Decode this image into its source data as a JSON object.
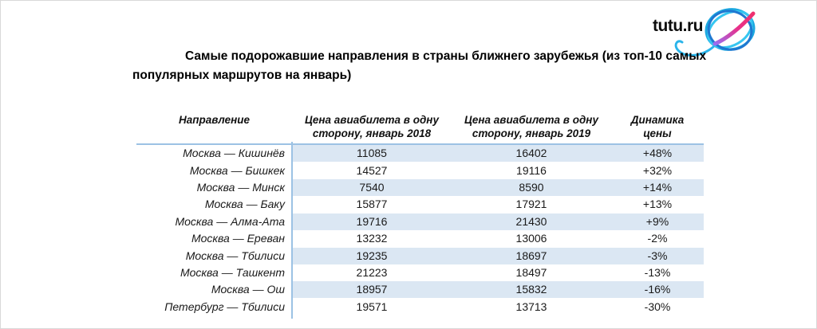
{
  "logo": {
    "text": "tutu.ru",
    "icon": "tutu-globe-icon"
  },
  "title": "Самые подорожавшие направления в страны ближнего зарубежья (из топ-10 самых популярных маршрутов на январь)",
  "chart_data": {
    "type": "table",
    "title": "Самые подорожавшие направления в страны ближнего зарубежья (из топ-10 самых популярных маршрутов на январь)",
    "columns": [
      "Направление",
      "Цена авиабилета в одну сторону, январь 2018",
      "Цена авиабилета в одну сторону, январь 2019",
      "Динамика цены"
    ],
    "rows": [
      [
        "Москва — Кишинёв",
        11085,
        16402,
        "+48%"
      ],
      [
        "Москва — Бишкек",
        14527,
        19116,
        "+32%"
      ],
      [
        "Москва — Минск",
        7540,
        8590,
        "+14%"
      ],
      [
        "Москва — Баку",
        15877,
        17921,
        "+13%"
      ],
      [
        "Москва — Алма-Ата",
        19716,
        21430,
        "+9%"
      ],
      [
        "Москва — Ереван",
        13232,
        13006,
        "-2%"
      ],
      [
        "Москва — Тбилиси",
        19235,
        18697,
        "-3%"
      ],
      [
        "Москва — Ташкент",
        21223,
        18497,
        "-13%"
      ],
      [
        "Москва — Ош",
        18957,
        15832,
        "-16%"
      ],
      [
        "Петербург — Тбилиси",
        19571,
        13713,
        "-30%"
      ]
    ],
    "layout": {
      "striped_rows": "odd rows highlighted, first column always white",
      "highlight_rows_zero_based": [
        0,
        2,
        4,
        6,
        8
      ]
    }
  },
  "colors": {
    "row_highlight": "#dbe7f3",
    "table_line": "#9cc2e4",
    "logo_blue": "#1ba8e0",
    "logo_cyan": "#36c6f0",
    "logo_dark_blue": "#1f78d1",
    "logo_magenta": "#e8308a",
    "text": "#1a1a1a"
  }
}
